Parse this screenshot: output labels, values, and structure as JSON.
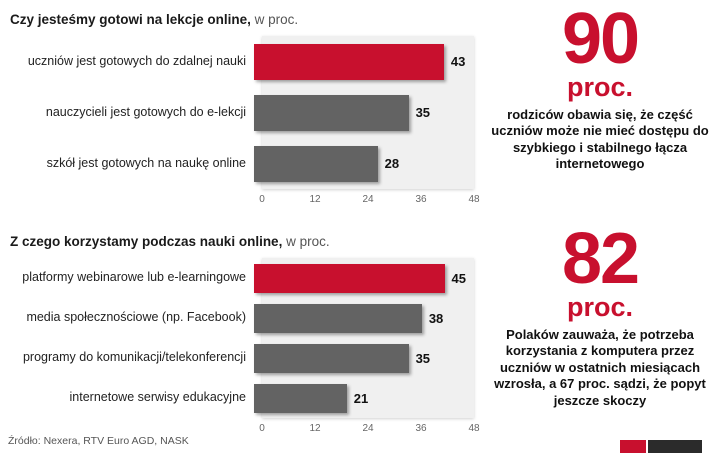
{
  "colors": {
    "red": "#c8102e",
    "gray": "#636363",
    "plot_bg": "#f0f0f0"
  },
  "chart_data": [
    {
      "type": "bar",
      "orientation": "horizontal",
      "title": "Czy jesteśmy gotowi na lekcje online, w proc.",
      "title_bold": "Czy jesteśmy gotowi na lekcje online,",
      "title_suffix": " w proc.",
      "categories": [
        "uczniów jest gotowych do zdalnej nauki",
        "nauczycieli jest gotowych do e-lekcji",
        "szkół jest gotowych na naukę online"
      ],
      "values": [
        43,
        35,
        28
      ],
      "bar_colors": [
        "red",
        "gray",
        "gray"
      ],
      "xlim": [
        0,
        48
      ],
      "xticks": [
        0,
        12,
        24,
        36,
        48
      ],
      "grid": false,
      "legend": false
    },
    {
      "type": "bar",
      "orientation": "horizontal",
      "title": "Z czego korzystamy podczas nauki online, w proc.",
      "title_bold": "Z czego korzystamy podczas nauki online,",
      "title_suffix": " w proc.",
      "categories": [
        "platformy webinarowe lub e-learningowe",
        "media społecznościowe (np. Facebook)",
        "programy do komunikacji/telekonferencji",
        "internetowe serwisy edukacyjne"
      ],
      "values": [
        45,
        38,
        35,
        21
      ],
      "bar_colors": [
        "red",
        "gray",
        "gray",
        "gray"
      ],
      "xlim": [
        0,
        48
      ],
      "xticks": [
        0,
        12,
        24,
        36,
        48
      ],
      "grid": false,
      "legend": false
    }
  ],
  "stats": [
    {
      "number": "90",
      "unit": "proc.",
      "text": "rodziców obawia się, że część uczniów może nie mieć dostępu do szybkiego i stabilnego łącza internetowego"
    },
    {
      "number": "82",
      "unit": "proc.",
      "text": "Polaków zauważa, że potrzeba korzystania z komputera przez uczniów w ostatnich miesiącach wzrosła, a 67 proc. sądzi, że popyt jeszcze skoczy"
    }
  ],
  "source": "Źródło: Nexera, RTV Euro AGD, NASK"
}
